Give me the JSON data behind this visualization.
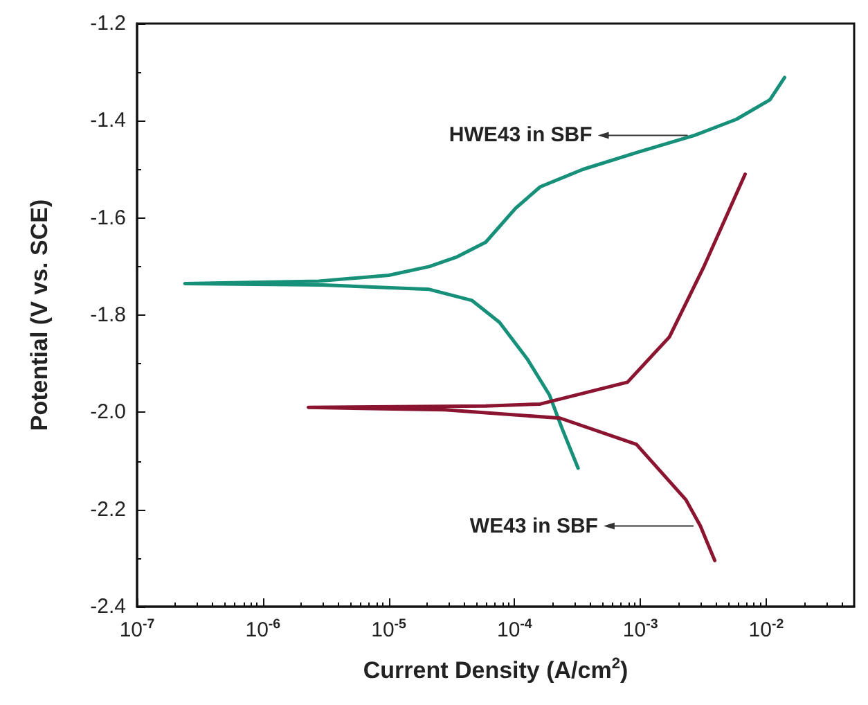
{
  "chart_data": {
    "type": "line",
    "xlabel": "Current Density (A/cm$^{2}$)",
    "ylabel": "Potential (V vs. SCE)",
    "log": "x",
    "grid": false,
    "marker": "none",
    "line_style": "solid",
    "xlim": [
      1e-07,
      0.05
    ],
    "xticks": [
      {
        "value": 1e-07,
        "label": "10$^{-7}$"
      },
      {
        "value": 1e-06,
        "label": "10$^{-6}$"
      },
      {
        "value": 1e-05,
        "label": "10$^{-5}$"
      },
      {
        "value": 0.0001,
        "label": "10$^{-4}$"
      },
      {
        "value": 0.001,
        "label": "10$^{-3}$"
      },
      {
        "value": 0.01,
        "label": "10$^{-2}$"
      }
    ],
    "ylim": [
      -2.4,
      -1.2
    ],
    "yticks": [
      -2.4,
      -2.2,
      {
        "value": -2.0,
        "label": "-2.0"
      },
      -1.8,
      -1.6,
      -1.4,
      -1.2
    ],
    "series": [
      {
        "color": "#17907a",
        "x": [
          0.00032,
          0.00024,
          0.00019,
          0.000126,
          7.6e-05,
          4.6e-05,
          2.1e-05,
          3e-06,
          2.4e-07,
          2.8e-06,
          1e-05,
          2.1e-05,
          3.5e-05,
          5.9e-05,
          0.000102,
          0.00016,
          0.00035,
          0.00095,
          0.0027,
          0.0058,
          0.0107,
          0.014
        ],
        "values": [
          -2.115,
          -2.035,
          -1.965,
          -1.89,
          -1.815,
          -1.77,
          -1.747,
          -1.738,
          -1.735,
          -1.73,
          -1.718,
          -1.7,
          -1.68,
          -1.65,
          -1.58,
          -1.536,
          -1.5,
          -1.465,
          -1.43,
          -1.397,
          -1.357,
          -1.311
        ]
      },
      {
        "color": "#8b1530",
        "x": [
          0.0039,
          0.003,
          0.0023,
          0.00093,
          0.00023,
          2.8e-05,
          2.3e-06,
          5.9e-05,
          0.00016,
          0.00079,
          0.0017,
          0.0032,
          0.0068
        ],
        "values": [
          -2.305,
          -2.234,
          -2.18,
          -2.066,
          -2.012,
          -1.995,
          -1.99,
          -1.987,
          -1.983,
          -1.938,
          -1.845,
          -1.7,
          -1.51
        ]
      }
    ],
    "annotations": [
      {
        "text": "HWE43 in SBF",
        "x": 0.0027,
        "y": -1.43
      },
      {
        "text": "WE43 in SBF",
        "x": 0.003,
        "y": -2.234
      }
    ]
  }
}
